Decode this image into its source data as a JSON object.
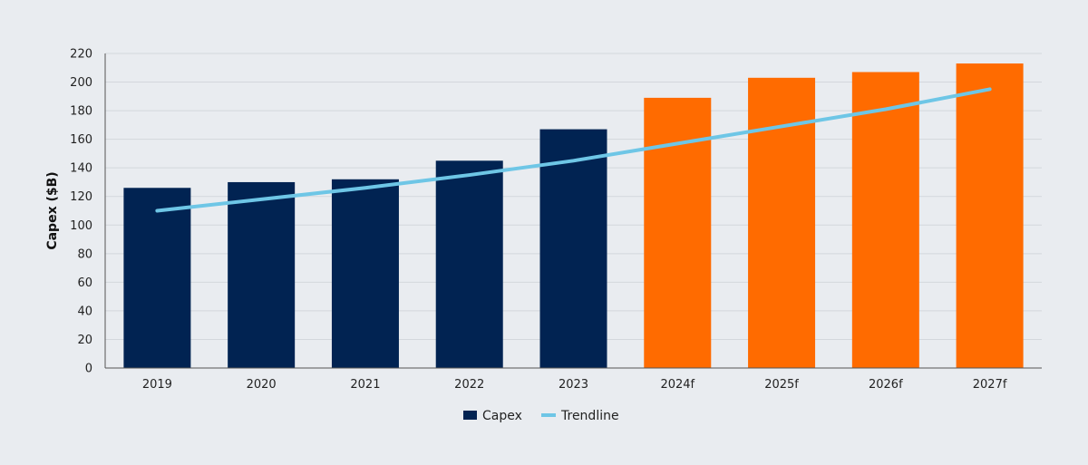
{
  "chart_data": {
    "type": "bar",
    "ylabel": "Capex ($B)",
    "xlabel": "",
    "ylim": [
      0,
      220
    ],
    "yticks": [
      0,
      20,
      40,
      60,
      80,
      100,
      120,
      140,
      160,
      180,
      200,
      220
    ],
    "categories": [
      "2019",
      "2020",
      "2021",
      "2022",
      "2023",
      "2024f",
      "2025f",
      "2026f",
      "2027f"
    ],
    "series": [
      {
        "name": "Capex",
        "type": "bar",
        "values": [
          126,
          130,
          132,
          145,
          167,
          189,
          203,
          207,
          213
        ],
        "colors": [
          "#012352",
          "#012352",
          "#012352",
          "#012352",
          "#012352",
          "#ff6b00",
          "#ff6b00",
          "#ff6b00",
          "#ff6b00"
        ]
      },
      {
        "name": "Trendline",
        "type": "line",
        "values": [
          110,
          118,
          126,
          135,
          145,
          157,
          169,
          181,
          195
        ],
        "color": "#6ec6e6"
      }
    ],
    "grid": true,
    "legend": "bottom-center"
  }
}
